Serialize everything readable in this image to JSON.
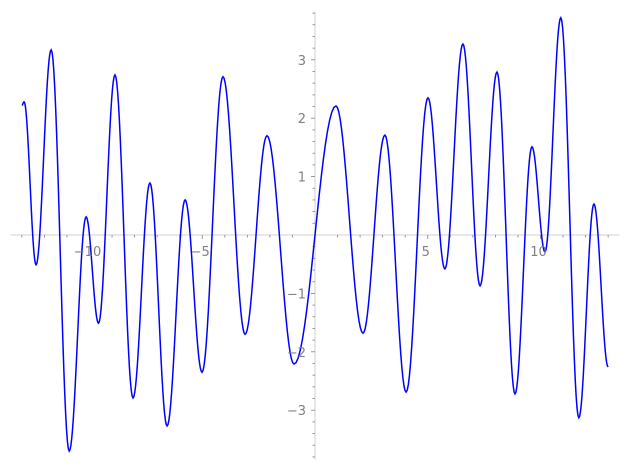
{
  "chart_data": {
    "type": "line",
    "title": "",
    "xlabel": "",
    "ylabel": "",
    "xlim": [
      -13.5,
      13.5
    ],
    "ylim": [
      -3.84,
      3.82
    ],
    "grid": false,
    "x_ticks": [
      -10,
      -5,
      5,
      10
    ],
    "x_tick_labels": [
      "−10",
      "−5",
      "5",
      "10"
    ],
    "y_ticks": [
      -3,
      -2,
      -1,
      1,
      2,
      3
    ],
    "y_tick_labels": [
      "−3",
      "−2",
      "−1",
      "1",
      "2",
      "3"
    ],
    "line_color": "#0000ff",
    "axis_color": "#e0e0e0",
    "series": [
      {
        "x": [
          -13.0,
          -12.9,
          -12.37,
          -11.7,
          -10.9,
          -10.15,
          -9.6,
          -8.87,
          -8.07,
          -7.32,
          -6.56,
          -5.76,
          -5.01,
          -4.08,
          -3.1,
          -2.13,
          -0.93,
          0.93,
          2.13,
          3.1,
          4.04,
          5.01,
          5.76,
          6.56,
          7.32,
          8.07,
          8.87,
          9.62,
          10.2,
          10.9,
          11.7,
          12.37,
          13.0
        ],
        "y": [
          2.22,
          2.28,
          -0.51,
          3.17,
          -3.7,
          0.31,
          -1.51,
          2.74,
          -2.79,
          0.89,
          -3.27,
          0.6,
          -2.35,
          2.71,
          -1.7,
          1.7,
          -2.21,
          2.21,
          -1.68,
          1.71,
          -2.69,
          2.35,
          -0.58,
          3.27,
          -0.87,
          2.79,
          -2.72,
          1.51,
          -0.29,
          3.72,
          -3.13,
          0.53,
          -2.26
        ]
      }
    ]
  }
}
